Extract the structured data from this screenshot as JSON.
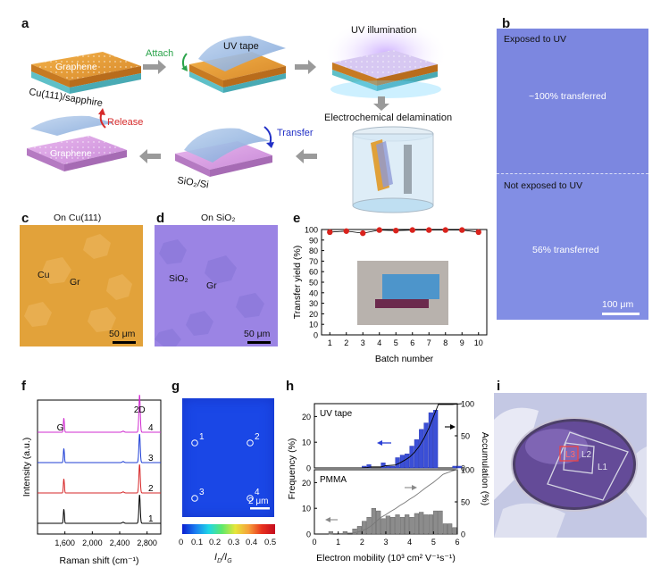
{
  "panels": {
    "a": {
      "letter": "a",
      "graphene_label": "Graphene",
      "substrate_label": "Cu(111)/sapphire",
      "attach_label": "Attach",
      "uv_tape_label": "UV tape",
      "uv_illumination_label": "UV illumination",
      "electrochemical_label": "Electrochemical delamination",
      "release_label": "Release",
      "transfer_label": "Transfer",
      "graphene_label_2": "Graphene",
      "sio2_si_label": "SiO₂/Si"
    },
    "b": {
      "letter": "b",
      "exposed_label": "Exposed to UV",
      "transferred_100": "~100% transferred",
      "not_exposed_label": "Not exposed to  UV",
      "transferred_56": "56% transferred",
      "scale_label": "100 μm"
    },
    "c": {
      "letter": "c",
      "title": "On Cu(111)",
      "cu_label": "Cu",
      "gr_label": "Gr",
      "scale_label": "50 μm"
    },
    "d": {
      "letter": "d",
      "title": "On SiO₂",
      "sio2_label": "SiO₂",
      "gr_label": "Gr",
      "scale_label": "50 μm"
    }
  },
  "charts": {
    "e": {
      "letter": "e"
    },
    "f": {
      "letter": "f"
    },
    "g": {
      "letter": "g",
      "point_labels": [
        "1",
        "2",
        "3",
        "4"
      ],
      "scale_label": "2 μm",
      "colorbar_ticks": [
        "0",
        "0.1",
        "0.2",
        "0.3",
        "0.4",
        "0.5"
      ],
      "colorbar_label": "I_D/I_G"
    },
    "h": {
      "letter": "h"
    },
    "i": {
      "letter": "i",
      "labels": [
        "L3",
        "L2",
        "L1"
      ]
    }
  },
  "colors": {
    "photo_blue": "#7c87e0",
    "cu_orange": "#e2a23a",
    "sio2_purple": "#9b84e4",
    "red_marker": "#d9231d",
    "bar_blue": "#3b4fd6",
    "bar_gray": "#8c8c8c"
  },
  "chart_data": [
    {
      "type": "scatter",
      "xlabel": "Batch number",
      "ylabel": "Transfer yield (%)",
      "x": [
        1,
        2,
        3,
        4,
        5,
        6,
        7,
        8,
        9,
        10
      ],
      "y": [
        97.5,
        98.5,
        96.5,
        99.5,
        99,
        99.5,
        99.5,
        99.5,
        99.5,
        97.5
      ],
      "xlim": [
        0.5,
        10.5
      ],
      "ylim": [
        0,
        100
      ],
      "xticks": [
        "1",
        "2",
        "3",
        "4",
        "5",
        "6",
        "7",
        "8",
        "9",
        "10"
      ],
      "yticks": [
        "0",
        "10",
        "20",
        "30",
        "40",
        "50",
        "60",
        "70",
        "80",
        "90",
        "100"
      ]
    },
    {
      "type": "line",
      "xlabel": "Raman shift (cm⁻¹)",
      "ylabel": "Intensity (a.u.)",
      "xlim": [
        1200,
        3000
      ],
      "xticks": [
        "1,600",
        "2,000",
        "2,400",
        "2,800"
      ],
      "peak_labels": [
        "G",
        "2D"
      ],
      "series": [
        {
          "name": "1",
          "color": "#000000",
          "offset": 0
        },
        {
          "name": "2",
          "color": "#d62728",
          "offset": 1
        },
        {
          "name": "3",
          "color": "#1f3fd6",
          "offset": 2
        },
        {
          "name": "4",
          "color": "#d02bd0",
          "offset": 3
        }
      ]
    },
    {
      "type": "bar",
      "xlabel": "Electron mobility (10³ cm² V⁻¹s⁻¹)",
      "ylabel": "Frequency (%)",
      "y2label": "Accumulation (%)",
      "xlim": [
        0,
        6
      ],
      "xticks": [
        "0",
        "1",
        "2",
        "3",
        "4",
        "5",
        "6"
      ],
      "series": [
        {
          "name": "UV tape",
          "bin_start": 2.0,
          "bin_width": 0.2,
          "values": [
            0.7,
            1.3,
            0,
            0,
            2,
            0.7,
            0.7,
            4,
            5,
            5.5,
            8.5,
            11,
            15,
            17.5,
            21.5,
            22.5,
            0,
            0,
            0,
            0.7,
            0.7
          ]
        },
        {
          "name": "PMMA",
          "bin_start": 0.6,
          "bin_width": 0.2,
          "values": [
            1,
            0,
            0.3,
            1,
            0,
            2,
            3,
            5,
            6.5,
            10,
            9,
            6,
            7,
            6.5,
            7.5,
            6.5,
            7.5,
            6.5,
            8,
            8.5,
            7.5,
            7.5,
            9,
            9,
            4,
            4,
            2.5
          ]
        }
      ],
      "ylim_top": [
        0,
        25
      ],
      "ylim_bottom": [
        0,
        25
      ],
      "yticks": [
        "0",
        "10",
        "20"
      ],
      "y2ticks": [
        "0",
        "50",
        "100"
      ]
    }
  ]
}
